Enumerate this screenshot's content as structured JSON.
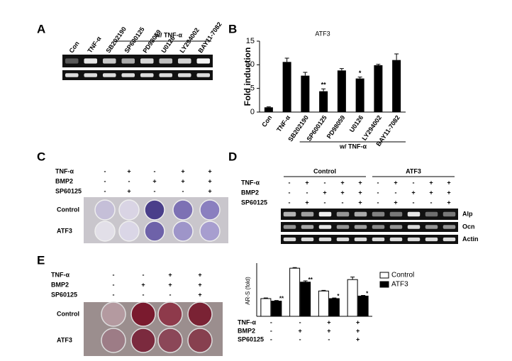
{
  "panels": {
    "a": {
      "label": "A",
      "lanes": [
        "Con",
        "TNF-α",
        "SB202190",
        "SP600125",
        "PD98059",
        "U0126",
        "LY294002",
        "BAY11-7082"
      ],
      "group_label": "w/ TNF-α"
    },
    "c": {
      "label": "C",
      "rows": [
        {
          "label": "TNF-α",
          "signs": [
            "-",
            "+",
            "-",
            "+",
            "+"
          ]
        },
        {
          "label": "BMP2",
          "signs": [
            "-",
            "-",
            "+",
            "+",
            "+"
          ]
        },
        {
          "label": "SP60125",
          "signs": [
            "-",
            "+",
            "-",
            "-",
            "+"
          ]
        }
      ],
      "plate_rows": [
        "Control",
        "ATF3"
      ]
    },
    "d": {
      "label": "D",
      "groups": [
        "Control",
        "ATF3"
      ],
      "rows": [
        {
          "label": "TNF-α",
          "signs": [
            "-",
            "+",
            "-",
            "+",
            "+",
            "-",
            "+",
            "-",
            "+",
            "+"
          ]
        },
        {
          "label": "BMP2",
          "signs": [
            "-",
            "-",
            "+",
            "+",
            "+",
            "-",
            "-",
            "+",
            "+",
            "+"
          ]
        },
        {
          "label": "SP60125",
          "signs": [
            "-",
            "+",
            "-",
            "-",
            "+",
            "-",
            "+",
            "-",
            "-",
            "+"
          ]
        }
      ],
      "bands": [
        "Alp",
        "Ocn",
        "Actin"
      ]
    },
    "e": {
      "label": "E",
      "rows": [
        {
          "label": "TNF-α",
          "signs": [
            "-",
            "-",
            "+",
            "+"
          ]
        },
        {
          "label": "BMP2",
          "signs": [
            "-",
            "+",
            "+",
            "+"
          ]
        },
        {
          "label": "SP60125",
          "signs": [
            "-",
            "-",
            "-",
            "+"
          ]
        }
      ],
      "plate_rows": [
        "Control",
        "ATF3"
      ]
    }
  },
  "chart_data": [
    {
      "type": "bar",
      "panel_label": "B",
      "title": "ATF3",
      "y_label": "Fold induction",
      "categories": [
        "Con",
        "TNF-α",
        "SB202190",
        "SP600125",
        "PD98059",
        "U0126",
        "LY294002",
        "BAY11-7082"
      ],
      "group_label": "w/ TNF-α",
      "values": [
        1.0,
        10.6,
        7.7,
        4.4,
        8.8,
        7.1,
        9.9,
        11.0
      ],
      "errors": [
        0.1,
        0.8,
        0.7,
        0.5,
        0.4,
        0.3,
        0.2,
        1.3
      ],
      "significance": [
        null,
        null,
        null,
        "**",
        null,
        "*",
        null,
        null
      ],
      "color": "#000000",
      "ylim": [
        0,
        15
      ],
      "yticks": [
        0,
        5,
        10,
        15
      ]
    },
    {
      "type": "grouped_bar",
      "y_label": "AR-S (fold)",
      "categories": [
        null,
        null,
        null,
        null
      ],
      "series": [
        {
          "name": "Control",
          "color": "#ffffff",
          "values": [
            1.4,
            3.8,
            2.0,
            2.9
          ],
          "errors": [
            0.05,
            0.05,
            0.05,
            0.2
          ],
          "significance": [
            null,
            null,
            null,
            null
          ]
        },
        {
          "name": "ATF3",
          "color": "#000000",
          "values": [
            1.2,
            2.7,
            1.4,
            1.6
          ],
          "errors": [
            0.05,
            0.1,
            0.05,
            0.05
          ],
          "significance": [
            "**",
            "**",
            "*",
            "*"
          ]
        }
      ],
      "legend": "upper-right",
      "ylim": [
        0,
        4.2
      ],
      "conditions": [
        {
          "label": "TNF-α",
          "signs": [
            "-",
            "-",
            "+",
            "+"
          ]
        },
        {
          "label": "BMP2",
          "signs": [
            "-",
            "+",
            "+",
            "+"
          ]
        },
        {
          "label": "SP60125",
          "signs": [
            "-",
            "-",
            "-",
            "+"
          ]
        }
      ]
    }
  ]
}
